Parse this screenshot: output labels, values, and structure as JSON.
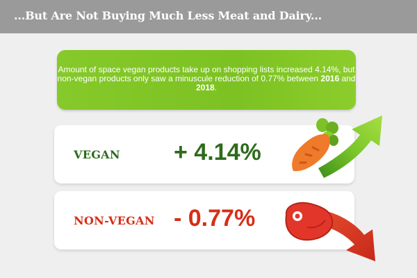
{
  "header": {
    "title": "...But Are Not Buying Much Less Meat and Dairy...",
    "background": "#9a9a9a"
  },
  "intro": {
    "text_before": "Amount of space vegan products take up on shopping lists increased 4.14%, but non-vegan products only saw a minuscule reduction of 0.77% between ",
    "year_start": "2016",
    "connector": " and ",
    "year_end": "2018",
    "text_after": ".",
    "background": "#7cc222"
  },
  "vegan": {
    "label": "VEGAN",
    "value": "+ 4.14%",
    "color": "#2e6b1c",
    "icon": "carrot-icon",
    "arrow": "arrow-up-icon"
  },
  "nonvegan": {
    "label": "NON-VEGAN",
    "value": "- 0.77%",
    "color": "#d62e17",
    "icon": "steak-icon",
    "arrow": "arrow-down-icon"
  }
}
